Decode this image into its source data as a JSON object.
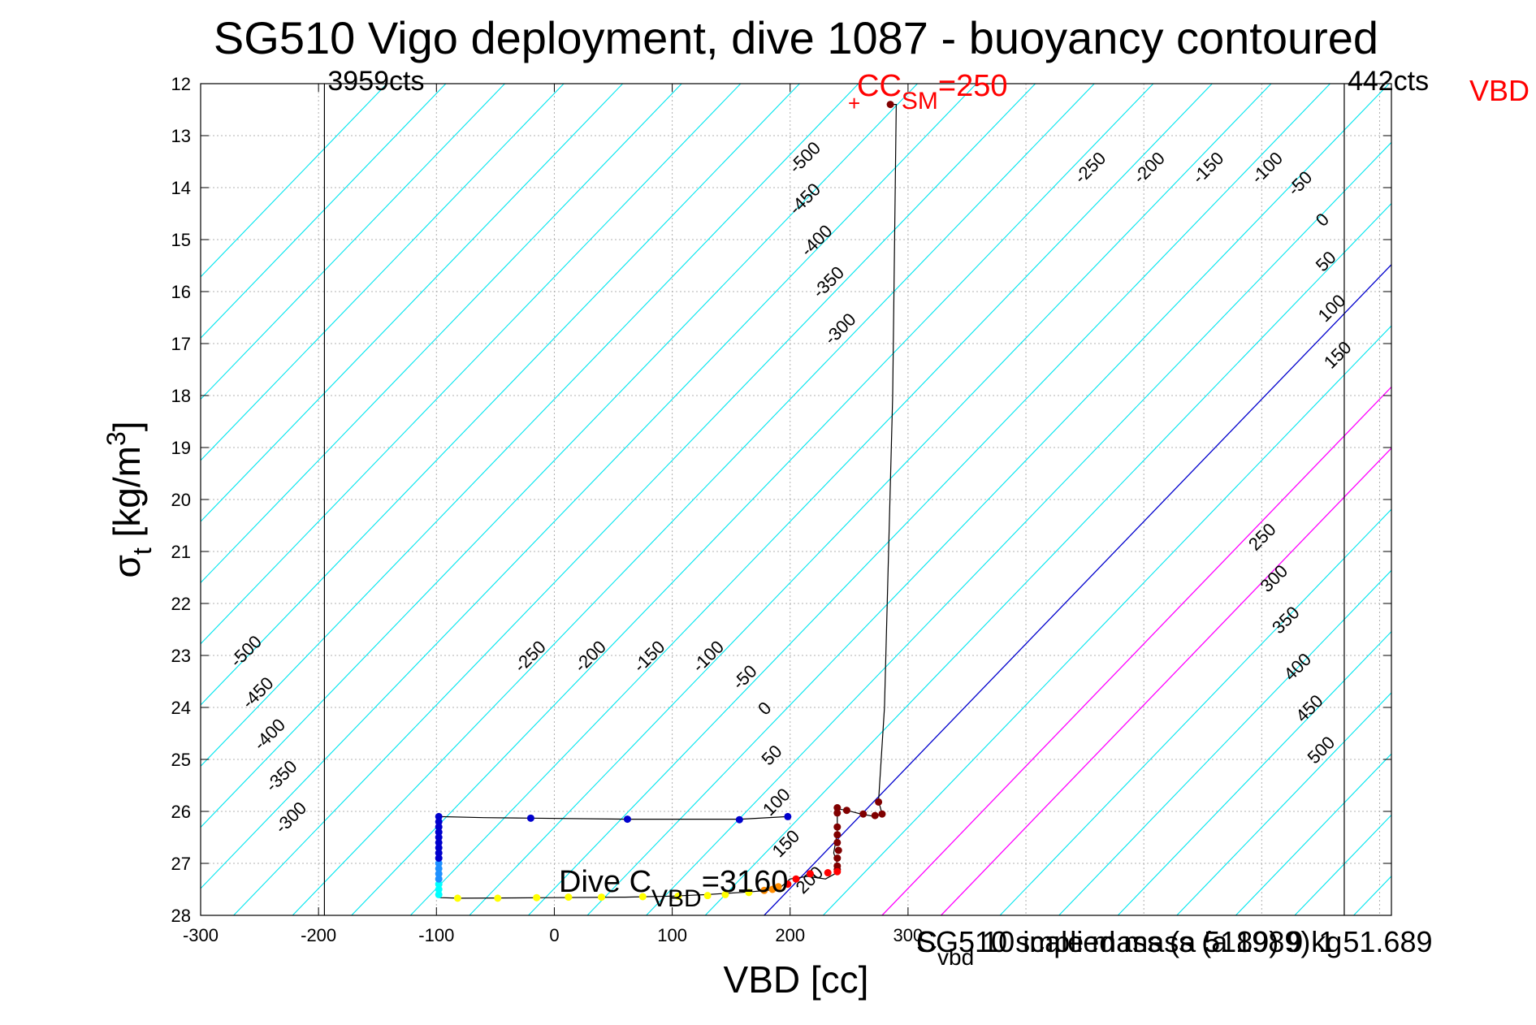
{
  "chart_data": {
    "type": "scatter",
    "title": "SG510 Vigo deployment, dive 1087 - buoyancy contoured",
    "xlabel": "VBD [cc]",
    "ylabel": "σ",
    "ylabel_sub": "t",
    "ylabel_unit": " [kg/m",
    "ylabel_sup": "3",
    "ylabel_close": "]",
    "xlim": [
      -300,
      710
    ],
    "ylim": [
      12,
      28
    ],
    "y_reversed": true,
    "grid": true,
    "x_ticks": [
      -300,
      -200,
      -100,
      0,
      100,
      200,
      300
    ],
    "y_ticks": [
      12,
      13,
      14,
      15,
      16,
      17,
      18,
      19,
      20,
      21,
      22,
      23,
      24,
      25,
      26,
      27,
      28
    ],
    "x_tick_labels": [
      "-300",
      "-200",
      "-100",
      "0",
      "100",
      "200",
      "300"
    ],
    "y_tick_labels": [
      "12",
      "13",
      "14",
      "15",
      "16",
      "17",
      "18",
      "19",
      "20",
      "21",
      "22",
      "23",
      "24",
      "25",
      "26",
      "27",
      "28"
    ],
    "cts_lines": [
      {
        "x": -195,
        "label": "3959cts"
      },
      {
        "x": 670,
        "label": "442cts"
      }
    ],
    "vbd_corner_label": "VBD",
    "cc_sm": {
      "x": 250,
      "y": 12.35,
      "label_main": "CC",
      "label_sub": "SM",
      "label_tail": "=250"
    },
    "dive_cvbd": {
      "main": "Dive C",
      "sub": "VBD",
      "tail": "=3160"
    },
    "overlap_texts": [
      {
        "main": "C",
        "sub": "vbd",
        "tail": " 10 implied mass (a 1989) 1 51.689"
      },
      {
        "main": "SG510 scale mass (a 5189) 9 kg",
        "sub": "",
        "tail": ""
      }
    ],
    "contours": {
      "slope_per_unit": 42.5,
      "zero_x_at_28": 178,
      "spacing_cc": 50,
      "levels": [
        -1000,
        -950,
        -900,
        -850,
        -800,
        -750,
        -700,
        -650,
        -600,
        -550,
        -500,
        -450,
        -400,
        -350,
        -300,
        -250,
        -200,
        -150,
        -100,
        -50,
        0,
        50,
        100,
        150,
        200,
        250,
        300,
        350,
        400,
        450,
        500,
        550,
        600,
        650,
        700
      ],
      "colors": {
        "negative": "#00e5ee",
        "zero": "#0000cd",
        "positive_magenta": "#ff00ff",
        "positive": "#00e5ee"
      },
      "labels": [
        {
          "v": -500,
          "x": -258,
          "y": 23.0,
          "t": "-500"
        },
        {
          "v": -450,
          "x": -248,
          "y": 23.8,
          "t": "-450"
        },
        {
          "v": -400,
          "x": -238,
          "y": 24.6,
          "t": "-400"
        },
        {
          "v": -350,
          "x": -228,
          "y": 25.4,
          "t": "-350"
        },
        {
          "v": -300,
          "x": -220,
          "y": 26.2,
          "t": "-300"
        },
        {
          "v": -250,
          "x": -17,
          "y": 23.1,
          "t": "-250"
        },
        {
          "v": -200,
          "x": 34,
          "y": 23.1,
          "t": "-200"
        },
        {
          "v": -150,
          "x": 84,
          "y": 23.1,
          "t": "-150"
        },
        {
          "v": -100,
          "x": 134,
          "y": 23.1,
          "t": "-100"
        },
        {
          "v": -50,
          "x": 165,
          "y": 23.5,
          "t": "-50"
        },
        {
          "v": 0,
          "x": 182,
          "y": 24.1,
          "t": "0"
        },
        {
          "v": 50,
          "x": 188,
          "y": 25.0,
          "t": "50"
        },
        {
          "v": 100,
          "x": 192,
          "y": 25.9,
          "t": "100"
        },
        {
          "v": 150,
          "x": 200,
          "y": 26.7,
          "t": "150"
        },
        {
          "v": 200,
          "x": 220,
          "y": 27.4,
          "t": "200"
        },
        {
          "v": -500,
          "x": 216,
          "y": 13.5,
          "t": "-500"
        },
        {
          "v": -450,
          "x": 216,
          "y": 14.3,
          "t": "-450"
        },
        {
          "v": -400,
          "x": 226,
          "y": 15.1,
          "t": "-400"
        },
        {
          "v": -350,
          "x": 236,
          "y": 15.9,
          "t": "-350"
        },
        {
          "v": -300,
          "x": 246,
          "y": 16.8,
          "t": "-300"
        },
        {
          "v": -250,
          "x": 458,
          "y": 13.7,
          "t": "-250"
        },
        {
          "v": -200,
          "x": 508,
          "y": 13.7,
          "t": "-200"
        },
        {
          "v": -150,
          "x": 558,
          "y": 13.7,
          "t": "-150"
        },
        {
          "v": -100,
          "x": 608,
          "y": 13.7,
          "t": "-100"
        },
        {
          "v": -50,
          "x": 636,
          "y": 14.0,
          "t": "-50"
        },
        {
          "v": 0,
          "x": 655,
          "y": 14.7,
          "t": "0"
        },
        {
          "v": 50,
          "x": 658,
          "y": 15.5,
          "t": "50"
        },
        {
          "v": 100,
          "x": 663,
          "y": 16.4,
          "t": "100"
        },
        {
          "v": 150,
          "x": 668,
          "y": 17.3,
          "t": "150"
        },
        {
          "v": 250,
          "x": 604,
          "y": 20.8,
          "t": "250"
        },
        {
          "v": 300,
          "x": 614,
          "y": 21.6,
          "t": "300"
        },
        {
          "v": 350,
          "x": 624,
          "y": 22.4,
          "t": "350"
        },
        {
          "v": 400,
          "x": 634,
          "y": 23.3,
          "t": "400"
        },
        {
          "v": 450,
          "x": 644,
          "y": 24.1,
          "t": "450"
        },
        {
          "v": 500,
          "x": 654,
          "y": 24.9,
          "t": "500"
        }
      ]
    },
    "track_line": [
      [
        285,
        12.4
      ],
      [
        290,
        12.4
      ],
      [
        287,
        18
      ],
      [
        280,
        24
      ],
      [
        275,
        25.8
      ],
      [
        278,
        26.05
      ],
      [
        272,
        26.1
      ],
      [
        260,
        26.05
      ],
      [
        248,
        25.98
      ],
      [
        240,
        25.95
      ],
      [
        240,
        26.4
      ],
      [
        237,
        26.8
      ],
      [
        240,
        27.0
      ],
      [
        238,
        27.2
      ],
      [
        230,
        27.3
      ],
      [
        215,
        27.25
      ],
      [
        200,
        27.3
      ],
      [
        190,
        27.5
      ],
      [
        165,
        27.55
      ],
      [
        130,
        27.6
      ],
      [
        100,
        27.63
      ],
      [
        60,
        27.65
      ],
      [
        0,
        27.66
      ],
      [
        -80,
        27.67
      ],
      [
        -97,
        27.66
      ],
      [
        -98,
        27.4
      ],
      [
        -98,
        26.1
      ],
      [
        -60,
        26.12
      ],
      [
        -20,
        26.13
      ],
      [
        60,
        26.15
      ],
      [
        158,
        26.15
      ],
      [
        198,
        26.1
      ]
    ],
    "series": [
      {
        "color": "#800000",
        "points": [
          [
            285,
            12.4
          ],
          [
            275,
            25.82
          ],
          [
            278,
            26.05
          ],
          [
            272,
            26.08
          ],
          [
            262,
            26.05
          ],
          [
            248,
            25.98
          ],
          [
            240,
            25.93
          ],
          [
            240,
            26.03
          ],
          [
            240,
            26.3
          ],
          [
            240,
            26.45
          ],
          [
            240,
            26.6
          ],
          [
            241,
            26.75
          ],
          [
            240,
            26.9
          ],
          [
            240,
            27.05
          ],
          [
            240,
            27.12
          ]
        ]
      },
      {
        "color": "#ff0000",
        "points": [
          [
            240,
            27.16
          ],
          [
            232,
            27.18
          ],
          [
            217,
            27.2
          ],
          [
            205,
            27.3
          ],
          [
            198,
            27.4
          ]
        ]
      },
      {
        "color": "#ff8c00",
        "points": [
          [
            190,
            27.45
          ],
          [
            185,
            27.5
          ],
          [
            178,
            27.52
          ]
        ]
      },
      {
        "color": "#ffff00",
        "points": [
          [
            165,
            27.56
          ],
          [
            145,
            27.6
          ],
          [
            130,
            27.62
          ],
          [
            105,
            27.63
          ],
          [
            75,
            27.64
          ],
          [
            40,
            27.65
          ],
          [
            12,
            27.65
          ],
          [
            -15,
            27.66
          ],
          [
            -48,
            27.67
          ],
          [
            -82,
            27.67
          ]
        ]
      },
      {
        "color": "#00ffff",
        "points": [
          [
            -98,
            27.6
          ],
          [
            -98,
            27.5
          ],
          [
            -98,
            27.4
          ]
        ]
      },
      {
        "color": "#1e90ff",
        "points": [
          [
            -98,
            27.3
          ],
          [
            -98,
            27.2
          ],
          [
            -98,
            27.1
          ],
          [
            -98,
            27.0
          ]
        ]
      },
      {
        "color": "#0000cd",
        "points": [
          [
            -98,
            26.1
          ],
          [
            -98,
            26.2
          ],
          [
            -98,
            26.3
          ],
          [
            -98,
            26.4
          ],
          [
            -98,
            26.5
          ],
          [
            -98,
            26.6
          ],
          [
            -98,
            26.7
          ],
          [
            -98,
            26.8
          ],
          [
            -98,
            26.9
          ],
          [
            -20,
            26.13
          ],
          [
            62,
            26.15
          ],
          [
            157,
            26.16
          ],
          [
            198,
            26.1
          ]
        ]
      }
    ]
  }
}
